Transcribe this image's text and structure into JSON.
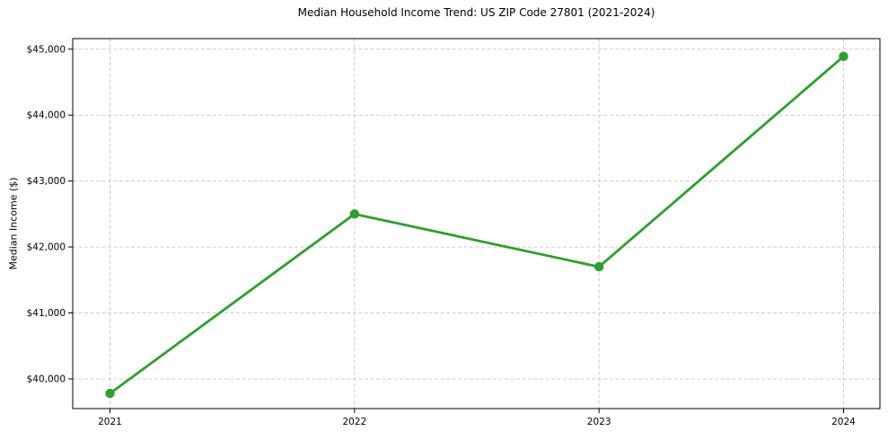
{
  "chart_data": {
    "type": "line",
    "title": "Median Household Income Trend: US ZIP Code 27801 (2021-2024)",
    "xlabel": "",
    "ylabel": "Median Income ($)",
    "categories": [
      "2021",
      "2022",
      "2023",
      "2024"
    ],
    "values": [
      39780,
      42500,
      41700,
      44890
    ],
    "ylim": [
      39550,
      45160
    ],
    "yticks": [
      40000,
      41000,
      42000,
      43000,
      44000,
      45000
    ],
    "ytick_labels": [
      "$40,000",
      "$41,000",
      "$42,000",
      "$43,000",
      "$44,000",
      "$45,000"
    ],
    "grid": true,
    "grid_style": "dashed",
    "legend": "none",
    "marker": "circle",
    "colors": {
      "line": "#2ca02c",
      "marker": "#2ca02c",
      "grid": "#cccccc",
      "axis": "#000000",
      "text": "#000000",
      "background": "#ffffff"
    }
  }
}
